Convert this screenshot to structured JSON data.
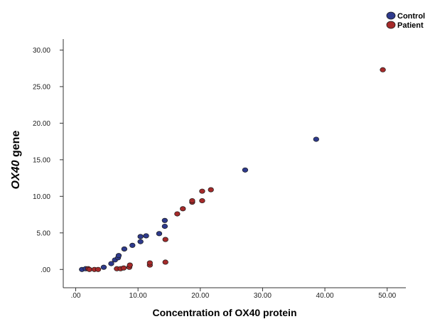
{
  "chart_data": {
    "type": "scatter",
    "title": "",
    "xlabel": "Concentration of OX40 protein",
    "ylabel_italic": "OX40",
    "ylabel_rest": " gene",
    "xlim": [
      -2,
      53
    ],
    "ylim": [
      -2.5,
      31.5
    ],
    "x_ticks": [
      0,
      10,
      20,
      30,
      40,
      50
    ],
    "x_tick_labels": [
      ".00",
      "10.00",
      "20.00",
      "30.00",
      "40.00",
      "50.00"
    ],
    "y_ticks": [
      0,
      5,
      10,
      15,
      20,
      25,
      30
    ],
    "y_tick_labels": [
      ".00",
      "5.00",
      "10.00",
      "15.00",
      "20.00",
      "25.00",
      "30.00"
    ],
    "grid": false,
    "legend_position": "top-right",
    "series": [
      {
        "name": "Control",
        "color": "#2e3a8c",
        "points": [
          [
            1.0,
            0.0
          ],
          [
            1.6,
            0.1
          ],
          [
            4.5,
            0.3
          ],
          [
            5.7,
            0.8
          ],
          [
            6.3,
            1.3
          ],
          [
            6.8,
            1.6
          ],
          [
            6.9,
            1.9
          ],
          [
            7.8,
            2.8
          ],
          [
            9.1,
            3.3
          ],
          [
            10.4,
            3.8
          ],
          [
            10.4,
            4.5
          ],
          [
            11.3,
            4.6
          ],
          [
            13.4,
            4.9
          ],
          [
            14.3,
            5.9
          ],
          [
            14.3,
            6.7
          ],
          [
            27.2,
            13.6
          ],
          [
            38.6,
            17.8
          ]
        ]
      },
      {
        "name": "Patient",
        "color": "#a52a2a",
        "points": [
          [
            2.0,
            0.1
          ],
          [
            2.2,
            0.0
          ],
          [
            3.0,
            0.0
          ],
          [
            3.6,
            0.0
          ],
          [
            6.6,
            0.1
          ],
          [
            7.2,
            0.1
          ],
          [
            7.7,
            0.2
          ],
          [
            8.6,
            0.3
          ],
          [
            8.7,
            0.6
          ],
          [
            11.9,
            0.6
          ],
          [
            11.9,
            0.9
          ],
          [
            14.4,
            1.0
          ],
          [
            14.4,
            4.1
          ],
          [
            16.3,
            7.6
          ],
          [
            17.2,
            8.3
          ],
          [
            18.7,
            9.2
          ],
          [
            18.7,
            9.4
          ],
          [
            20.3,
            9.4
          ],
          [
            20.3,
            10.7
          ],
          [
            21.7,
            10.9
          ],
          [
            49.3,
            27.3
          ]
        ]
      }
    ]
  }
}
